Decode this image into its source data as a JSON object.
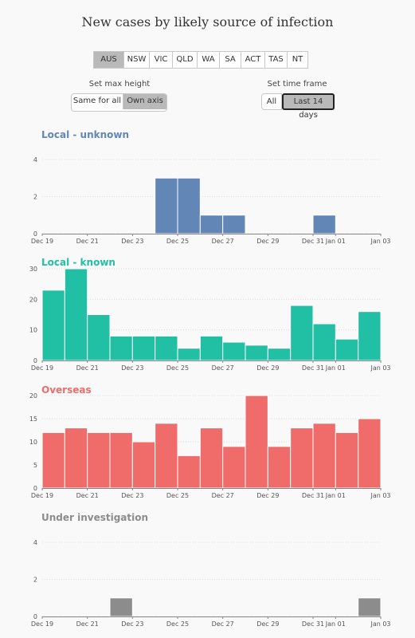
{
  "title": "New cases by likely source of infection",
  "state_tabs": [
    "AUS",
    "NSW",
    "VIC",
    "QLD",
    "WA",
    "SA",
    "ACT",
    "TAS",
    "NT"
  ],
  "active_state": "AUS",
  "max_height": {
    "label": "Set max height",
    "options": [
      "Same for all",
      "Own axis"
    ],
    "active": "Own axis"
  },
  "time_frame": {
    "label": "Set time frame",
    "options": [
      "All",
      "Last 14 days"
    ],
    "active": "Last 14 days"
  },
  "colors": {
    "local_unknown": "#6286b6",
    "local_known": "#21bfa4",
    "overseas": "#ef6c6a",
    "under_investigation": "#8c8c8c"
  },
  "chart_data": [
    {
      "type": "bar",
      "title": "Local - unknown",
      "categories": [
        "Dec 19",
        "Dec 20",
        "Dec 21",
        "Dec 22",
        "Dec 23",
        "Dec 24",
        "Dec 25",
        "Dec 26",
        "Dec 27",
        "Dec 28",
        "Dec 29",
        "Dec 30",
        "Dec 31",
        "Jan 01",
        "Jan 02"
      ],
      "values": [
        0,
        0,
        0,
        0,
        0,
        3,
        3,
        1,
        1,
        0,
        0,
        0,
        1,
        0,
        0
      ],
      "ylim": [
        0,
        4
      ],
      "yticks": [
        0,
        2,
        4
      ],
      "grid": true
    },
    {
      "type": "bar",
      "title": "Local - known",
      "categories": [
        "Dec 19",
        "Dec 20",
        "Dec 21",
        "Dec 22",
        "Dec 23",
        "Dec 24",
        "Dec 25",
        "Dec 26",
        "Dec 27",
        "Dec 28",
        "Dec 29",
        "Dec 30",
        "Dec 31",
        "Jan 01",
        "Jan 02"
      ],
      "values": [
        23,
        30,
        15,
        8,
        8,
        8,
        4,
        8,
        6,
        5,
        4,
        18,
        12,
        7,
        16
      ],
      "ylim": [
        0,
        30
      ],
      "yticks": [
        0,
        10,
        20,
        30
      ],
      "grid": true
    },
    {
      "type": "bar",
      "title": "Overseas",
      "categories": [
        "Dec 19",
        "Dec 20",
        "Dec 21",
        "Dec 22",
        "Dec 23",
        "Dec 24",
        "Dec 25",
        "Dec 26",
        "Dec 27",
        "Dec 28",
        "Dec 29",
        "Dec 30",
        "Dec 31",
        "Jan 01",
        "Jan 02"
      ],
      "values": [
        12,
        13,
        12,
        12,
        10,
        14,
        7,
        13,
        9,
        20,
        9,
        13,
        14,
        12,
        15
      ],
      "ylim": [
        0,
        20
      ],
      "yticks": [
        0,
        5,
        10,
        15,
        20
      ],
      "grid": true
    },
    {
      "type": "bar",
      "title": "Under investigation",
      "categories": [
        "Dec 19",
        "Dec 20",
        "Dec 21",
        "Dec 22",
        "Dec 23",
        "Dec 24",
        "Dec 25",
        "Dec 26",
        "Dec 27",
        "Dec 28",
        "Dec 29",
        "Dec 30",
        "Dec 31",
        "Jan 01",
        "Jan 02"
      ],
      "values": [
        0,
        0,
        0,
        1,
        0,
        0,
        0,
        0,
        0,
        0,
        0,
        0,
        0,
        0,
        1
      ],
      "ylim": [
        0,
        4
      ],
      "yticks": [
        0,
        2,
        4
      ],
      "grid": true
    }
  ],
  "x_tick_labels": [
    "Dec 19",
    "Dec 21",
    "Dec 23",
    "Dec 25",
    "Dec 27",
    "Dec 29",
    "Dec 31",
    "Jan 01",
    "Jan 03"
  ]
}
